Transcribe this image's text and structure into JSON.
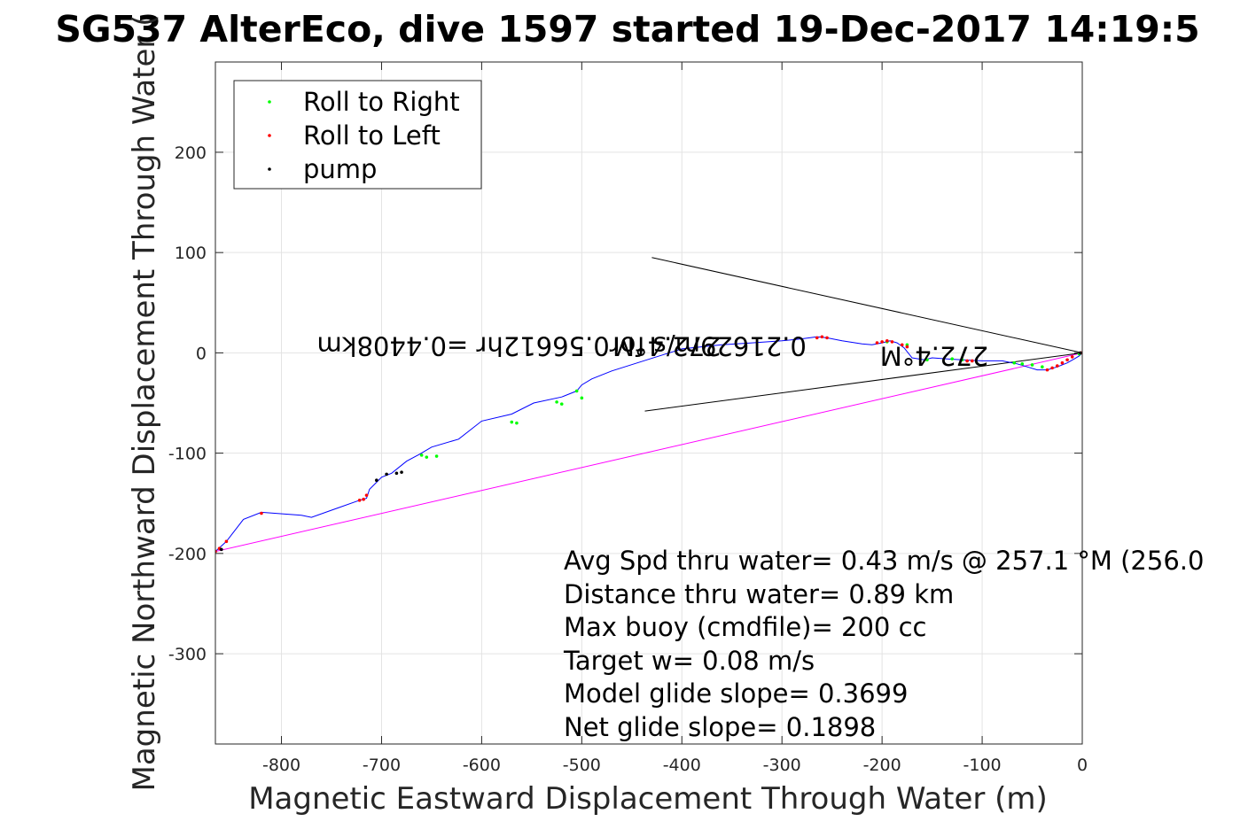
{
  "chart_data": {
    "type": "scatter",
    "title": "SG537 AlterEco, dive 1597 started 19-Dec-2017 14:19:5",
    "xlabel": "Magnetic Eastward Displacement Through Water (m)",
    "ylabel": "Magnetic Northward Displacement Through Water (",
    "xlim": [
      -866,
      0
    ],
    "ylim": [
      -390,
      290
    ],
    "xticks": [
      -800,
      -700,
      -600,
      -500,
      -400,
      -300,
      -200,
      -100,
      0
    ],
    "yticks": [
      -300,
      -200,
      -100,
      0,
      100,
      200
    ],
    "grid": true,
    "legend": {
      "placement": "top-left",
      "entries": [
        {
          "label": "Roll to Right",
          "color": "#00ff00"
        },
        {
          "label": "Roll to Left",
          "color": "#ff0000"
        },
        {
          "label": "pump",
          "color": "#000000"
        }
      ]
    },
    "track": {
      "color": "#0000ff",
      "x": [
        0,
        -3,
        -8,
        -15,
        -25,
        -35,
        -45,
        -55,
        -65,
        -80,
        -100,
        -120,
        -135,
        -150,
        -158,
        -170,
        -178,
        -185,
        -192,
        -200,
        -210,
        -220,
        -240,
        -255,
        -265,
        -280,
        -300,
        -330,
        -360,
        -400,
        -435,
        -470,
        -490,
        -500,
        -505,
        -520,
        -548,
        -570,
        -600,
        -623,
        -650,
        -662,
        -675,
        -690,
        -700,
        -706,
        -712,
        -715,
        -722,
        -770,
        -780,
        -820,
        -838,
        -855,
        -866
      ],
      "y": [
        0,
        -3,
        -6,
        -10,
        -14,
        -17,
        -17,
        -14,
        -11,
        -8,
        -8,
        -7,
        -6,
        -5,
        -7,
        -5,
        5,
        10,
        12,
        10,
        8,
        9,
        12,
        15,
        16,
        14,
        12,
        10,
        8,
        4,
        -7,
        -18,
        -26,
        -32,
        -38,
        -44,
        -50,
        -61,
        -68,
        -86,
        -94,
        -101,
        -108,
        -120,
        -124,
        -130,
        -136,
        -145,
        -147,
        -164,
        -162,
        -159,
        -166,
        -188,
        -198
      ]
    },
    "target_line": {
      "color": "#ff00ff",
      "x": [
        0,
        -866
      ],
      "y": [
        0,
        -198
      ]
    },
    "cone_lines": {
      "color": "#000000",
      "segments": [
        {
          "x": [
            0,
            -430
          ],
          "y": [
            0,
            95
          ]
        },
        {
          "x": [
            0,
            -437
          ],
          "y": [
            0,
            -58
          ]
        }
      ]
    },
    "rolls_right": {
      "x": [
        -3,
        -40,
        -50,
        -60,
        -68,
        -120,
        -130,
        -155,
        -175,
        -195,
        -500,
        -505,
        -520,
        -525,
        -565,
        -570,
        -645,
        -655,
        -660
      ],
      "y": [
        -1,
        -14,
        -12,
        -11,
        -10,
        -7,
        -6,
        -7,
        8,
        11,
        -45,
        -38,
        -51,
        -49,
        -70,
        -69,
        -103,
        -104,
        -102
      ]
    },
    "rolls_left": {
      "x": [
        -1,
        -10,
        -15,
        -20,
        -25,
        -30,
        -35,
        -110,
        -115,
        -175,
        -180,
        -190,
        -195,
        -200,
        -205,
        -255,
        -260,
        -265,
        -715,
        -718,
        -722,
        -820,
        -855,
        -862,
        -866
      ],
      "y": [
        0,
        -4,
        -7,
        -10,
        -13,
        -15,
        -17,
        -8,
        -8,
        6,
        8,
        11,
        12,
        11,
        10,
        15,
        16,
        15,
        -142,
        -146,
        -147,
        -160,
        -188,
        -195,
        -198
      ]
    },
    "pumps": {
      "x": [
        -2,
        -680,
        -685,
        -695,
        -705,
        -860
      ],
      "y": [
        0,
        -119,
        -120,
        -121,
        -127,
        -196
      ]
    },
    "annotations": [
      {
        "text": "272.4°M",
        "x": -148,
        "y": 6,
        "rotate": 180
      },
      {
        "text": "0.21629m/s for0.56612hr =0.4408km",
        "x": -520,
        "y": 16,
        "rotate": 180
      },
      {
        "text": "272.4°M",
        "x": -415,
        "y": 16,
        "rotate": 180
      }
    ],
    "stats": [
      "Avg Spd thru water=  0.43 m/s @ 257.1 °M (256.0",
      "Distance thru water=  0.89 km",
      "Max buoy (cmdfile)= 200 cc",
      "Target w= 0.08 m/s",
      "Model glide slope= 0.3699",
      "Net glide slope= 0.1898"
    ]
  }
}
